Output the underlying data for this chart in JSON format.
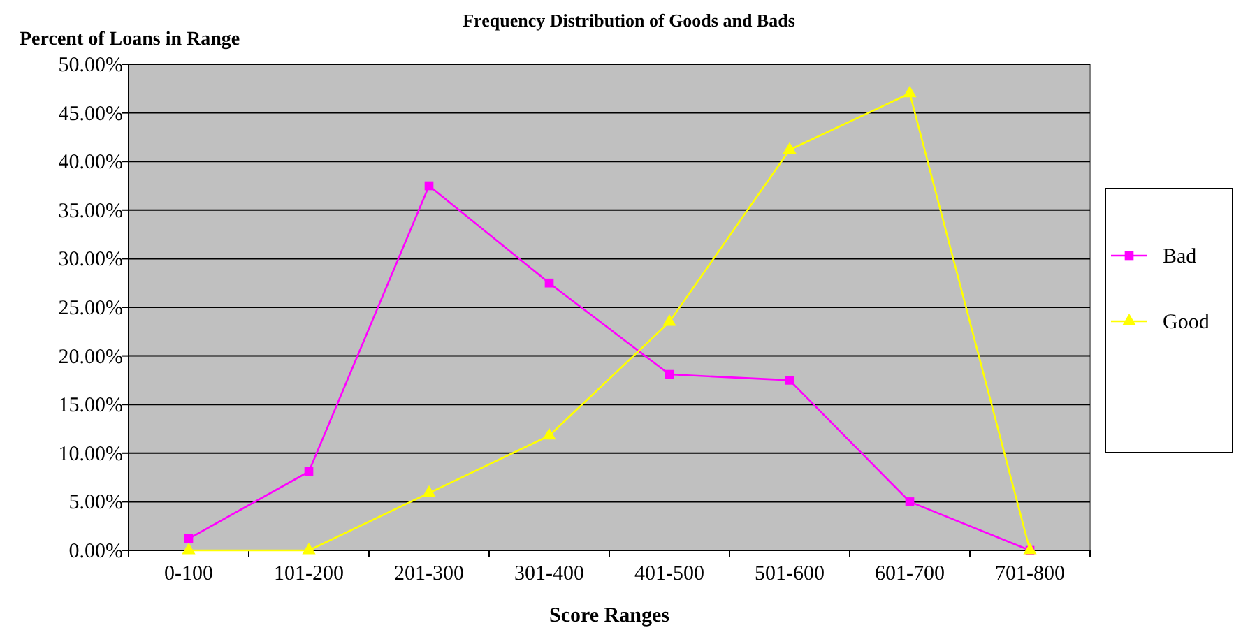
{
  "chart_data": {
    "type": "line",
    "title": "Frequency Distribution of Goods and Bads",
    "xlabel": "Score Ranges",
    "ylabel": "Percent of Loans in Range",
    "categories": [
      "0-100",
      "101-200",
      "201-300",
      "301-400",
      "401-500",
      "501-600",
      "601-700",
      "701-800"
    ],
    "series": [
      {
        "name": "Bad",
        "color": "#ff00ff",
        "marker": "square",
        "values": [
          1.2,
          8.1,
          37.5,
          27.5,
          18.1,
          17.5,
          5.0,
          0
        ]
      },
      {
        "name": "Good",
        "color": "#ffff00",
        "marker": "triangle",
        "values": [
          0,
          0,
          5.9,
          11.8,
          23.5,
          41.2,
          47.0,
          0
        ]
      }
    ],
    "ylim": [
      0,
      50
    ],
    "yticks": [
      {
        "value": 0,
        "label": "0.00%"
      },
      {
        "value": 5,
        "label": "5.00%"
      },
      {
        "value": 10,
        "label": "10.00%"
      },
      {
        "value": 15,
        "label": "15.00%"
      },
      {
        "value": 20,
        "label": "20.00%"
      },
      {
        "value": 25,
        "label": "25.00%"
      },
      {
        "value": 30,
        "label": "30.00%"
      },
      {
        "value": 35,
        "label": "35.00%"
      },
      {
        "value": 40,
        "label": "40.00%"
      },
      {
        "value": 45,
        "label": "45.00%"
      },
      {
        "value": 50,
        "label": "50.00%"
      }
    ],
    "grid": "y",
    "legend": "right",
    "line_style": "solid"
  }
}
